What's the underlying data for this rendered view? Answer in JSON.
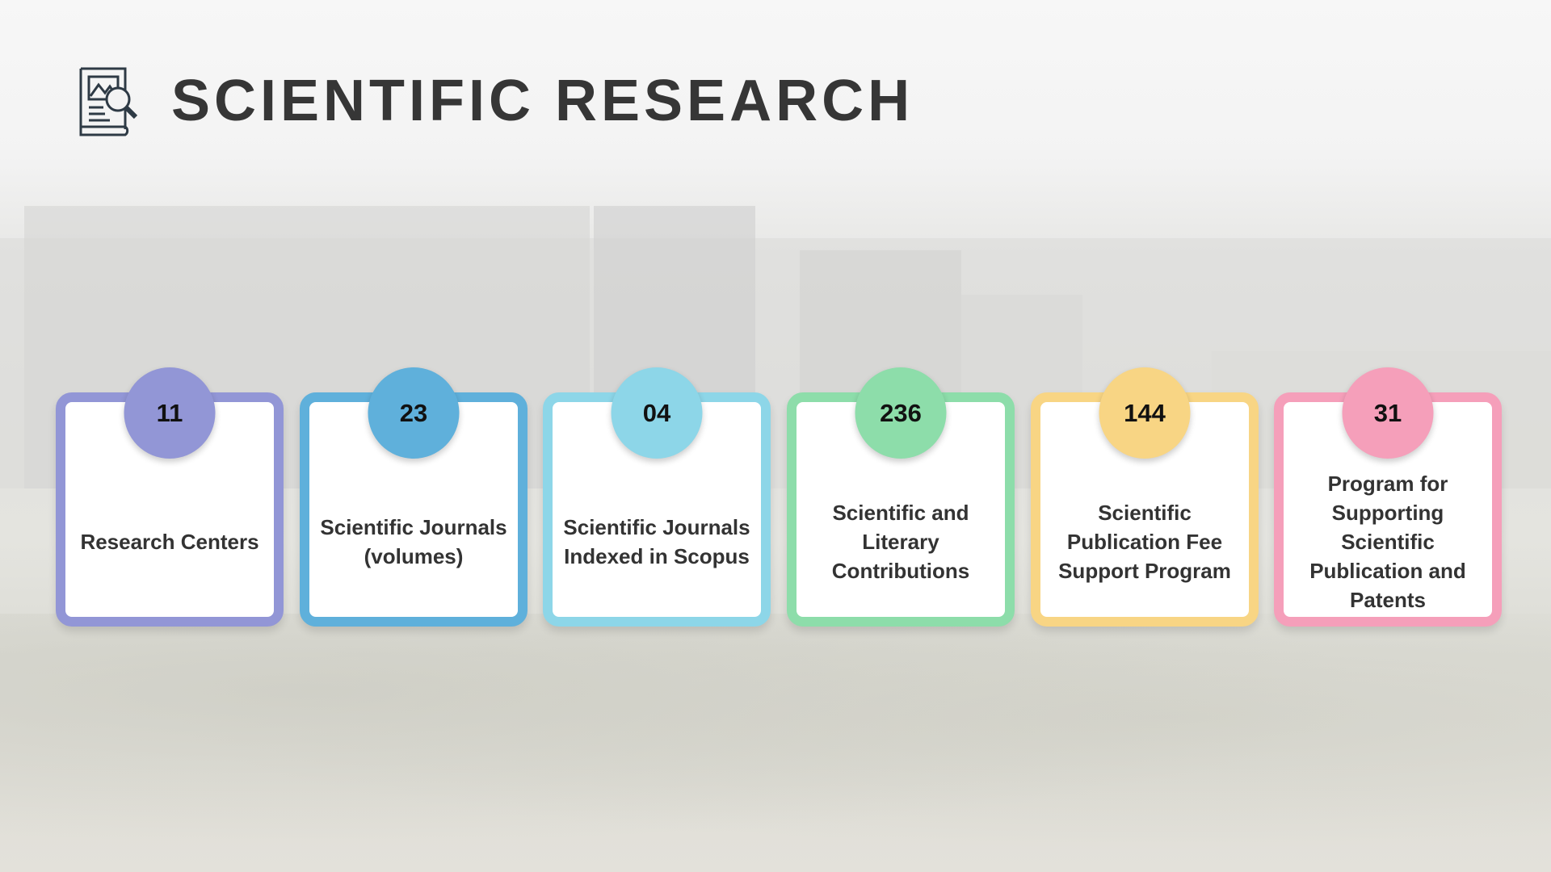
{
  "title": "SCIENTIFIC RESEARCH",
  "header_icon": "research-document-magnifier-icon",
  "cards": [
    {
      "value": "11",
      "label": "Research Centers",
      "color": "#9296d6"
    },
    {
      "value": "23",
      "label": "Scientific Journals (volumes)",
      "color": "#5fb0db"
    },
    {
      "value": "04",
      "label": "Scientific Journals Indexed in Scopus",
      "color": "#8dd6e8"
    },
    {
      "value": "236",
      "label": "Scientific and Literary Contributions",
      "color": "#8dddaa"
    },
    {
      "value": "144",
      "label": "Scientific Publication Fee Support Program",
      "color": "#f8d584"
    },
    {
      "value": "31",
      "label": "Program for Supporting Scientific Publication and Patents",
      "color": "#f59fba"
    }
  ]
}
